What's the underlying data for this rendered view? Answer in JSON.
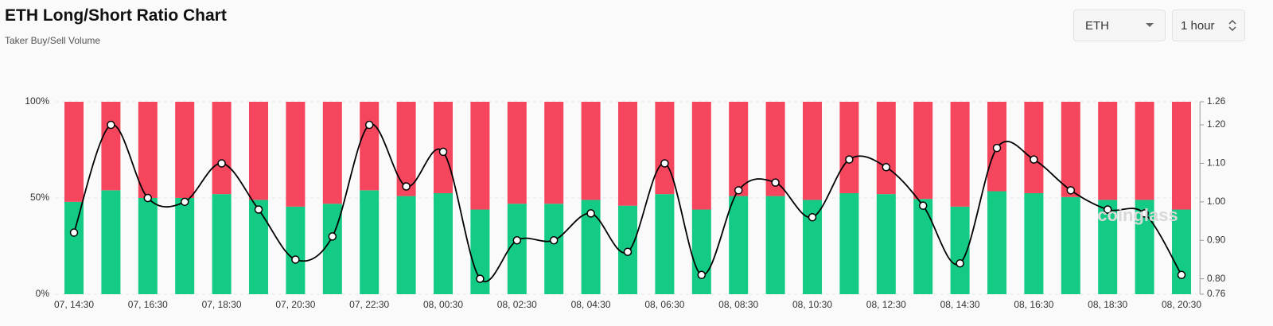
{
  "title": "ETH Long/Short Ratio Chart",
  "subtitle": "Taker Buy/Sell Volume",
  "controls": {
    "symbol": "ETH",
    "interval": "1 hour"
  },
  "watermark": "coinglass",
  "chart_data": {
    "type": "bar",
    "stacked": true,
    "categories": [
      "07, 14:30",
      null,
      "07, 16:30",
      null,
      "07, 18:30",
      null,
      "07, 20:30",
      null,
      "07, 22:30",
      null,
      "08, 00:30",
      null,
      "08, 02:30",
      null,
      "08, 04:30",
      null,
      "08, 06:30",
      null,
      "08, 08:30",
      null,
      "08, 10:30",
      null,
      "08, 12:30",
      null,
      "08, 14:30",
      null,
      "08, 16:30",
      null,
      "08, 18:30",
      null,
      "08, 20:30"
    ],
    "series": [
      {
        "color": "#13cb84",
        "values": [
          48,
          54,
          50,
          50,
          52,
          49,
          45.5,
          47,
          54,
          51,
          52.5,
          44,
          47,
          47,
          49,
          46,
          52,
          44,
          51,
          51,
          49,
          52.5,
          52,
          49.5,
          45.5,
          53.5,
          52.5,
          50.5,
          49,
          49,
          44
        ]
      },
      {
        "color": "#f5465e",
        "values": [
          52,
          46,
          50,
          50,
          48,
          51,
          54.5,
          53,
          46,
          49,
          47.5,
          56,
          53,
          53,
          51,
          54,
          48,
          56,
          49,
          49,
          51,
          47.5,
          48,
          50.5,
          54.5,
          46.5,
          47.5,
          49.5,
          51,
          51,
          56
        ]
      },
      {
        "type": "line",
        "axis": "y2",
        "color": "#000000",
        "values": [
          0.92,
          1.2,
          1.01,
          1.0,
          1.1,
          0.98,
          0.85,
          0.91,
          1.2,
          1.04,
          1.13,
          0.8,
          0.9,
          0.9,
          0.97,
          0.87,
          1.1,
          0.81,
          1.03,
          1.05,
          0.96,
          1.11,
          1.09,
          0.99,
          0.84,
          1.14,
          1.11,
          1.03,
          0.98,
          0.97,
          0.81
        ]
      }
    ],
    "ylim": [
      0,
      100
    ],
    "yticks": [
      {
        "value": 0,
        "label": "0%"
      },
      {
        "value": 50,
        "label": "50%"
      },
      {
        "value": 100,
        "label": "100%"
      }
    ],
    "y2lim": [
      0.76,
      1.26
    ],
    "y2ticks": [
      0.76,
      {
        "value": 0.8,
        "label": "0.80"
      },
      {
        "value": 0.9,
        "label": "0.90"
      },
      {
        "value": 1.0,
        "label": "1.00"
      },
      {
        "value": 1.1,
        "label": "1.10"
      },
      {
        "value": 1.2,
        "label": "1.20"
      },
      1.26
    ],
    "grid": true
  }
}
